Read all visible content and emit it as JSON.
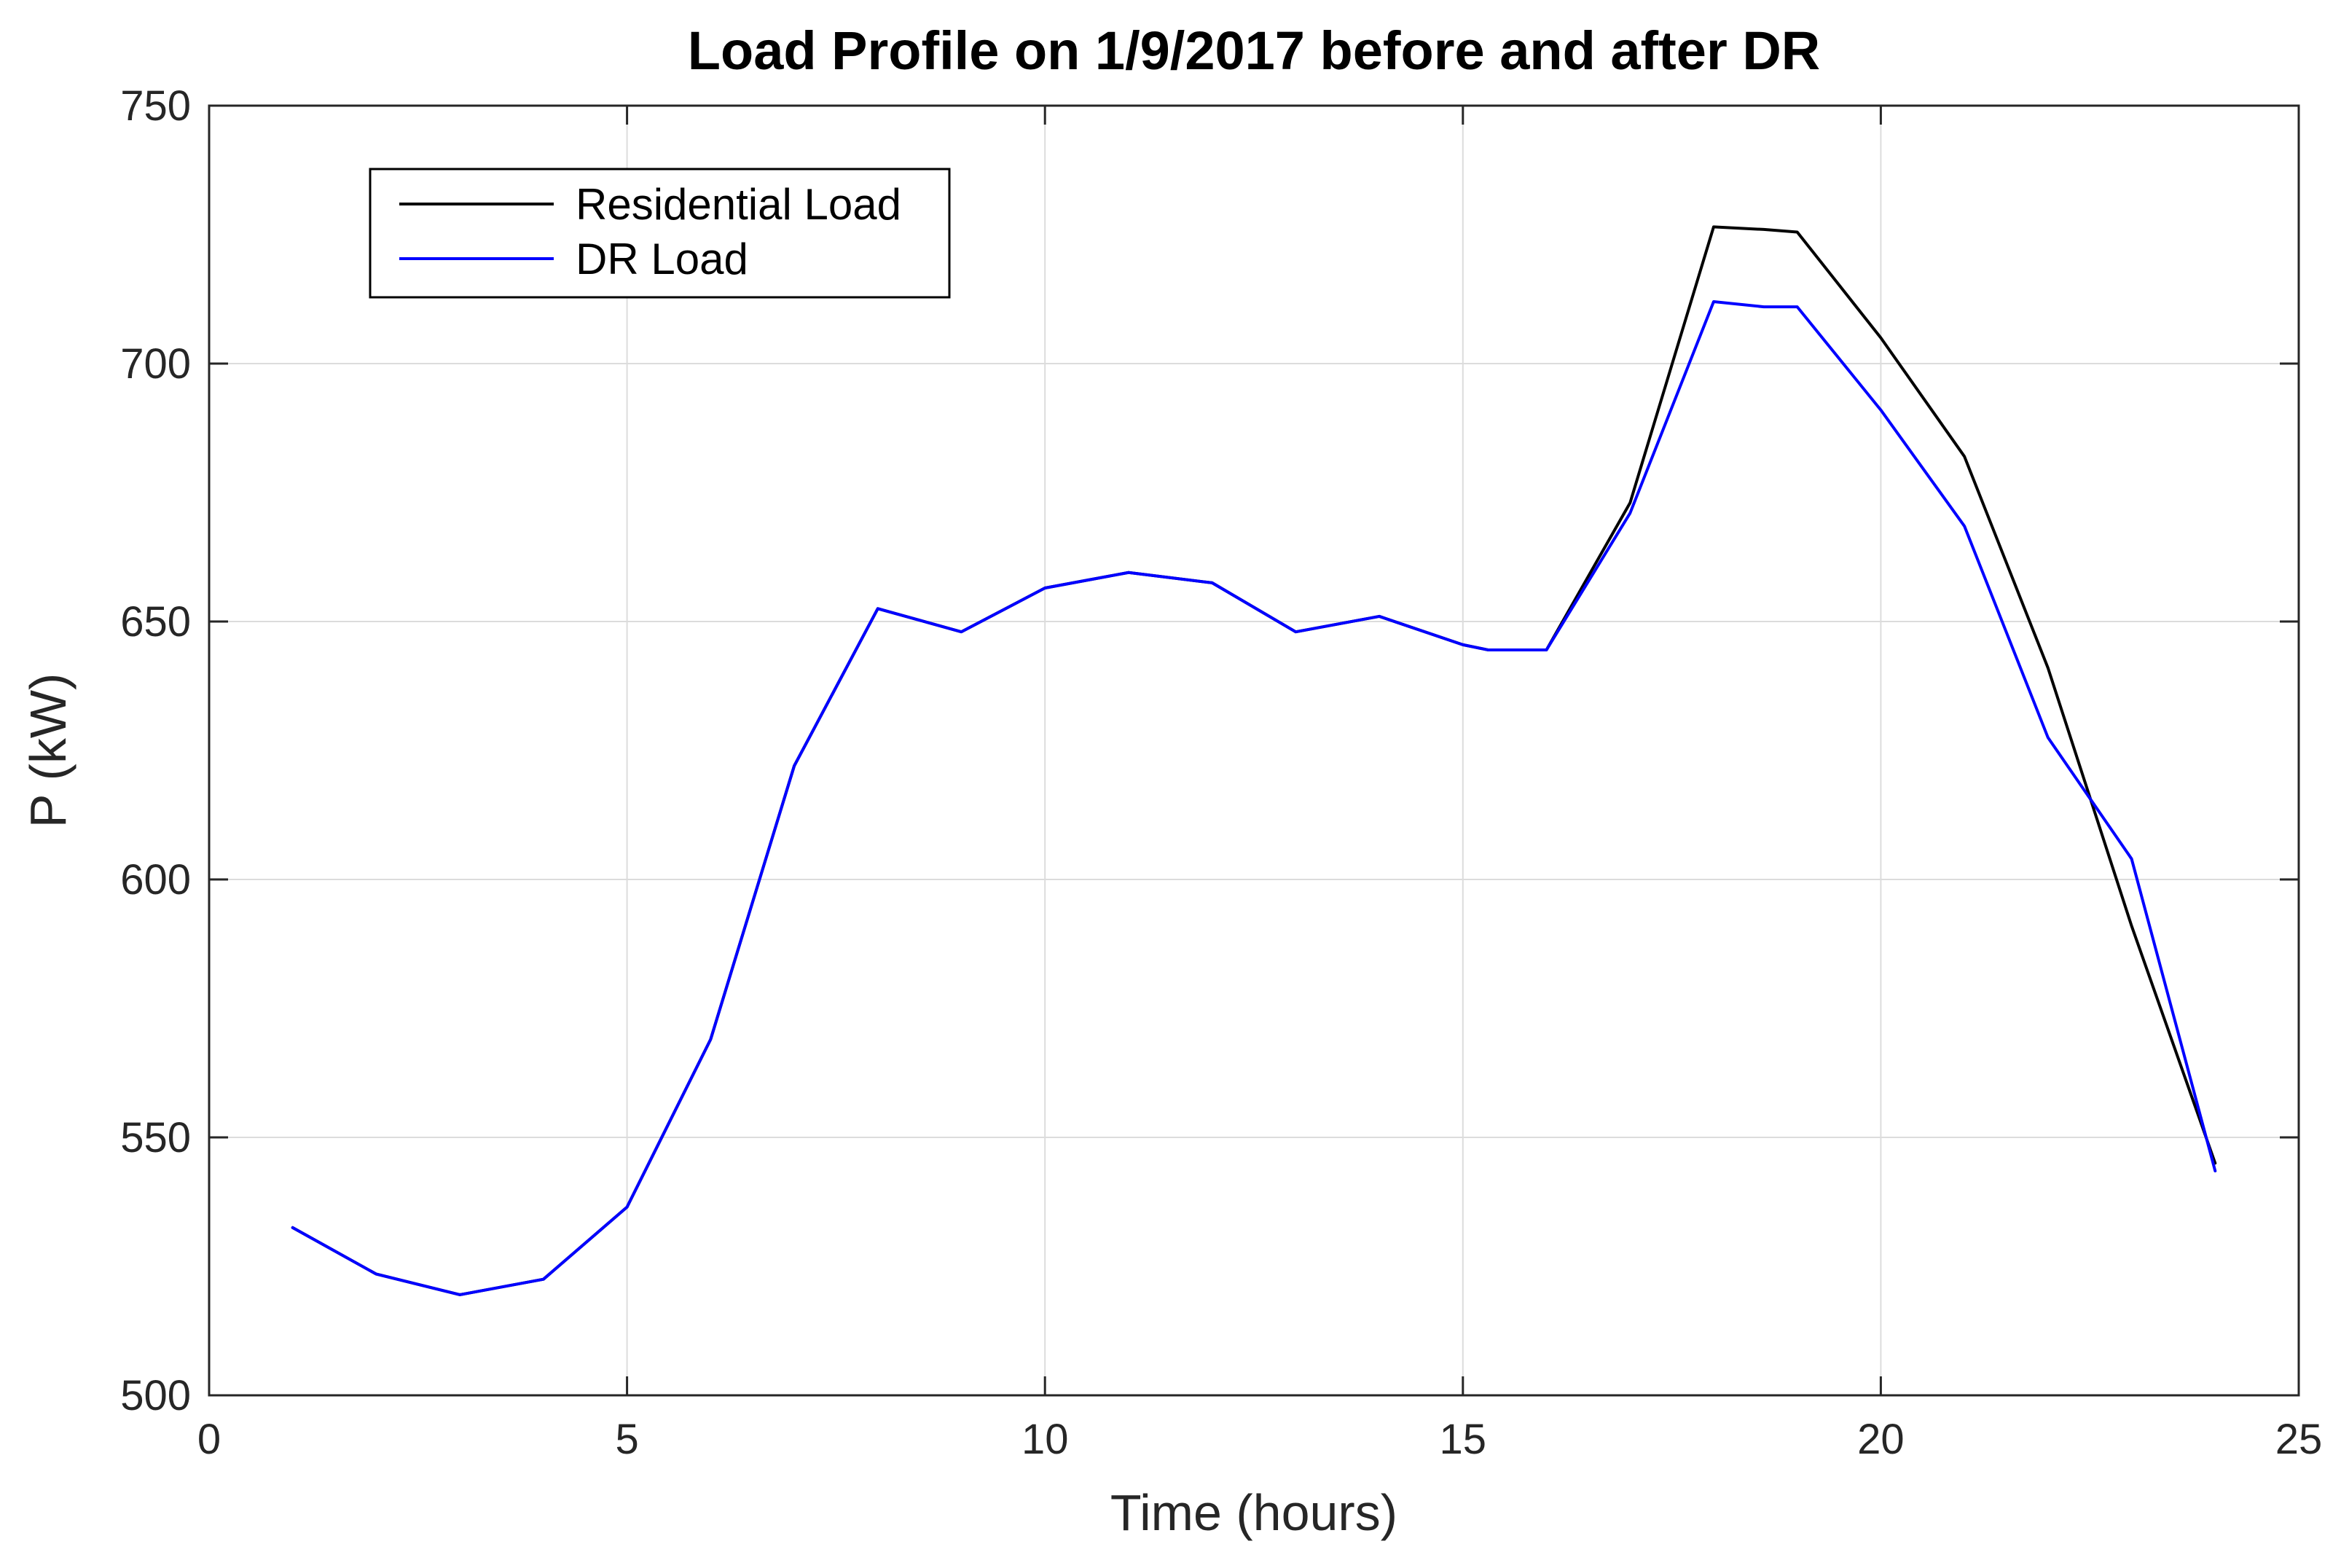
{
  "chart_data": {
    "type": "line",
    "title": "Load Profile on 1/9/2017 before and after DR",
    "xlabel": "Time (hours)",
    "ylabel": "P (kW)",
    "xlim": [
      0,
      25
    ],
    "ylim": [
      500,
      750
    ],
    "xticks": [
      0,
      5,
      10,
      15,
      20,
      25
    ],
    "yticks": [
      500,
      550,
      600,
      650,
      700,
      750
    ],
    "xtick_labels": [
      "0",
      "5",
      "10",
      "15",
      "20",
      "25"
    ],
    "ytick_labels": [
      "500",
      "550",
      "600",
      "650",
      "700",
      "750"
    ],
    "grid": true,
    "legend_position": "top-left",
    "x": [
      1,
      2,
      3,
      4,
      5,
      6,
      7,
      8,
      9,
      10,
      11,
      12,
      13,
      14,
      15,
      15.3,
      16,
      17,
      18,
      18.6,
      19,
      20,
      21,
      22,
      23,
      24
    ],
    "series": [
      {
        "name": "Residential Load",
        "color": "#000000",
        "values": [
          532.5,
          523.5,
          519.5,
          522.5,
          536.5,
          569,
          622,
          652.5,
          648,
          656.5,
          659.5,
          657.5,
          648,
          651,
          645.5,
          644.5,
          644.5,
          673,
          726.5,
          726,
          725.5,
          705,
          682,
          641,
          591,
          545
        ]
      },
      {
        "name": "DR Load",
        "color": "#0000ff",
        "values": [
          532.5,
          523.5,
          519.5,
          522.5,
          536.5,
          569,
          622,
          652.5,
          648,
          656.5,
          659.5,
          657.5,
          648,
          651,
          645.5,
          644.5,
          644.5,
          671,
          712,
          711,
          711,
          691,
          668.5,
          627.5,
          604,
          543.5
        ]
      }
    ]
  }
}
